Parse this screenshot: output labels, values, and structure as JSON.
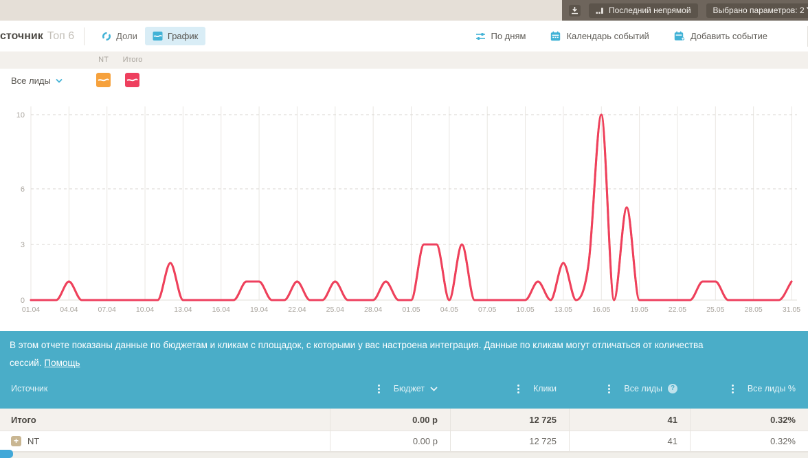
{
  "topbar": {
    "attribution_button": "Последний непрямой",
    "params_button": "Выбрано параметров: 2"
  },
  "toolbar": {
    "title": "сточник",
    "title_badge": "Топ 6",
    "view_tabs": [
      {
        "label": "Доли"
      },
      {
        "label": "График"
      }
    ],
    "active_tab": "График",
    "actions": {
      "by_days": "По дням",
      "events_calendar": "Календарь событий",
      "add_event": "Добавить событие"
    }
  },
  "legend": {
    "columns": [
      "NT",
      "Итого"
    ],
    "metric_selector": "Все лиды"
  },
  "chart_data": {
    "type": "line",
    "title": "",
    "xlabel": "",
    "ylabel": "",
    "x_start": "01.04",
    "x_end": "31.05",
    "x_step_days": 1,
    "x_tick_labels": [
      "01.04",
      "04.04",
      "07.04",
      "10.04",
      "13.04",
      "16.04",
      "19.04",
      "22.04",
      "25.04",
      "28.04",
      "01.05",
      "04.05",
      "07.05",
      "10.05",
      "13.05",
      "16.05",
      "19.05",
      "22.05",
      "25.05",
      "28.05",
      "31.05"
    ],
    "y_ticks": [
      0,
      3,
      6,
      10
    ],
    "ylim": [
      0,
      10
    ],
    "grid": {
      "vertical": "solid",
      "horizontal": "dashed"
    },
    "legend_position": "top-left",
    "series": [
      {
        "name": "NT",
        "color": "#f6a13c",
        "values": [
          0,
          0,
          0,
          1,
          0,
          0,
          0,
          0,
          0,
          0,
          0,
          2,
          0,
          0,
          0,
          0,
          0,
          1,
          1,
          0,
          0,
          1,
          0,
          0,
          1,
          0,
          0,
          0,
          1,
          0,
          0,
          3,
          3,
          0,
          3,
          0,
          0,
          0,
          0,
          0,
          1,
          0,
          2,
          0,
          2,
          10,
          0,
          5,
          0,
          0,
          0,
          0,
          0,
          1,
          1,
          0,
          0,
          0,
          0,
          0,
          1
        ]
      },
      {
        "name": "Итого",
        "color": "#ee3f5e",
        "values": [
          0,
          0,
          0,
          1,
          0,
          0,
          0,
          0,
          0,
          0,
          0,
          2,
          0,
          0,
          0,
          0,
          0,
          1,
          1,
          0,
          0,
          1,
          0,
          0,
          1,
          0,
          0,
          0,
          1,
          0,
          0,
          3,
          3,
          0,
          3,
          0,
          0,
          0,
          0,
          0,
          1,
          0,
          2,
          0,
          2,
          10,
          0,
          5,
          0,
          0,
          0,
          0,
          0,
          1,
          1,
          0,
          0,
          0,
          0,
          0,
          1
        ]
      }
    ]
  },
  "banner": {
    "line1": "В этом отчете показаны данные по бюджетам и кликам с площадок, с которыми у вас настроена интеграция. Данные по кликам могут отличаться от количества",
    "line2": "сессий.",
    "help_link": "Помощь"
  },
  "table": {
    "columns": [
      "Источник",
      "Бюджет",
      "Клики",
      "Все лиды",
      "Все лиды %"
    ],
    "rows": [
      {
        "source": "Итого",
        "budget": "0.00 р",
        "clicks": "12 725",
        "leads": "41",
        "leads_percent": "0.32%"
      },
      {
        "source": "NT",
        "budget": "0.00 р",
        "clicks": "12 725",
        "leads": "41",
        "leads_percent": "0.32%"
      }
    ]
  },
  "colors": {
    "accent_teal": "#4aadc8",
    "accent_blue": "#41b2d6",
    "line_total": "#ee3f5e",
    "line_nt": "#f6a13c",
    "topbar_dark": "#6e655c",
    "topbar_button": "#5c544b",
    "total_row_bg": "#f4f1ed"
  }
}
